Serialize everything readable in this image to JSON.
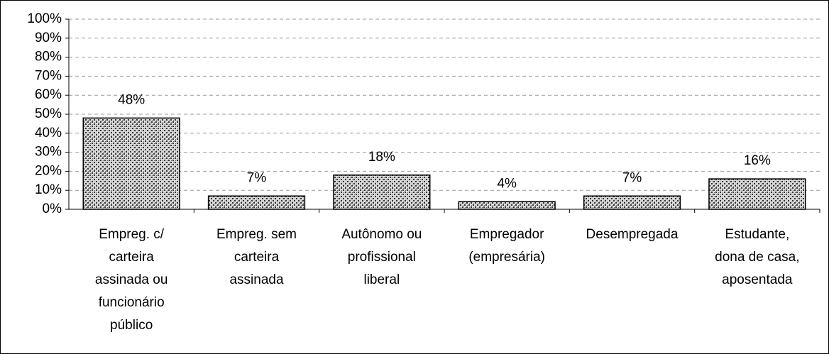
{
  "chart_data": {
    "type": "bar",
    "categories": [
      "Empreg. c/\ncarteira\nassinada ou\nfuncionário\npúblico",
      "Empreg. sem\ncarteira\nassinada",
      "Autônomo ou\nprofissional\nliberal",
      "Empregador\n(empresária)",
      "Desempregada",
      "Estudante,\ndona de casa,\naposentada"
    ],
    "values": [
      48,
      7,
      18,
      4,
      7,
      16
    ],
    "value_labels": [
      "48%",
      "7%",
      "18%",
      "4%",
      "7%",
      "16%"
    ],
    "color": "#808080",
    "ylim": [
      0,
      100
    ],
    "yticks": [
      {
        "value": 0,
        "label": "0%"
      },
      {
        "value": 10,
        "label": "10%"
      },
      {
        "value": 20,
        "label": "20%"
      },
      {
        "value": 30,
        "label": "30%"
      },
      {
        "value": 40,
        "label": "40%"
      },
      {
        "value": 50,
        "label": "50%"
      },
      {
        "value": 60,
        "label": "60%"
      },
      {
        "value": 70,
        "label": "70%"
      },
      {
        "value": 80,
        "label": "80%"
      },
      {
        "value": 90,
        "label": "90%"
      },
      {
        "value": 100,
        "label": "100%"
      }
    ],
    "grid": true
  }
}
